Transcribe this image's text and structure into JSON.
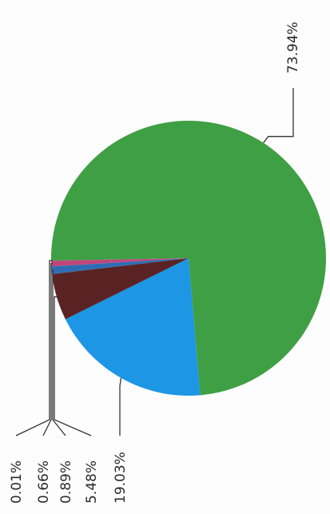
{
  "chart_data": {
    "type": "pie",
    "labels_rotated": true,
    "slices": [
      {
        "value": 73.94,
        "label": "73.94%",
        "color": "#3f9f44"
      },
      {
        "value": 19.03,
        "label": "19.03%",
        "color": "#1e96e6"
      },
      {
        "value": 5.48,
        "label": "5.48%",
        "color": "#5a2323"
      },
      {
        "value": 0.89,
        "label": "0.89%",
        "color": "#2f6db3"
      },
      {
        "value": 0.66,
        "label": "0.66%",
        "color": "#c0477a"
      },
      {
        "value": 0.01,
        "label": "0.01%",
        "color": "#6d4a8f"
      }
    ]
  }
}
